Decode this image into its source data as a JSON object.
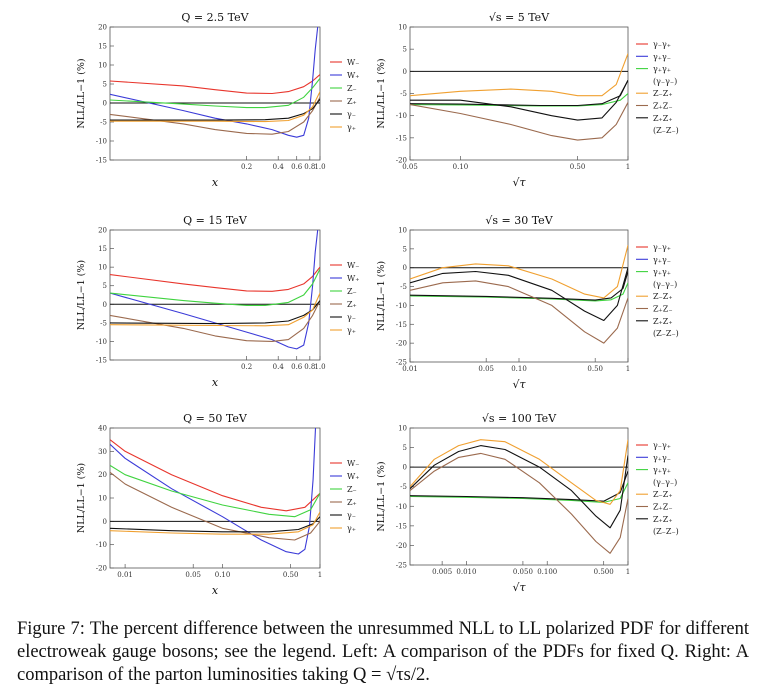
{
  "figure": {
    "caption_label": "Figure 7:",
    "caption_text": "The percent difference between the unresummed NLL to LL polarized PDF for different electroweak gauge bosons; see the legend. Left: A comparison of the PDFs for fixed Q. Right: A comparison of the parton luminosities taking Q = √τs/2."
  },
  "colors": {
    "red": "#e8352c",
    "blue": "#3b3bd8",
    "green": "#3fd33f",
    "brown": "#9b6a4e",
    "black": "#111111",
    "orange": "#f0a030"
  },
  "left_legend": [
    "W₋",
    "W₊",
    "Z₋",
    "Z₊",
    "γ₋",
    "γ₊"
  ],
  "left_legend_colors": [
    "#e8352c",
    "#3b3bd8",
    "#3fd33f",
    "#9b6a4e",
    "#111111",
    "#f0a030"
  ],
  "right_legend": [
    "γ₋γ₊",
    "γ₊γ₋",
    "γ₊γ₊",
    "(γ₋γ₋)",
    "Z₋Z₊",
    "Z₊Z₋",
    "Z₊Z₊",
    "(Z₋Z₋)"
  ],
  "right_legend_colors": [
    "#e8352c",
    "#3b3bd8",
    "#3fd33f",
    "#3fd33f",
    "#f0a030",
    "#9b6a4e",
    "#111111",
    "#111111"
  ],
  "chart_data": [
    {
      "type": "line",
      "title": "Q = 2.5 TeV",
      "xlabel": "x",
      "ylabel": "NLL/LL−1 (%)",
      "xscale": "log",
      "xlim": [
        0.01,
        1.0
      ],
      "ylim": [
        -15,
        20
      ],
      "yticks": [
        -15,
        -10,
        -5,
        0,
        5,
        10,
        15,
        20
      ],
      "xticks": [
        0.2,
        0.4,
        0.6,
        0.8,
        1.0
      ],
      "series": [
        {
          "name": "W₋",
          "color": "#e8352c",
          "x": [
            0.01,
            0.05,
            0.1,
            0.2,
            0.35,
            0.5,
            0.7,
            0.85,
            1.0
          ],
          "y": [
            5.8,
            4.5,
            3.5,
            2.6,
            2.5,
            3.0,
            4.3,
            5.8,
            7.5
          ]
        },
        {
          "name": "W₊",
          "color": "#3b3bd8",
          "x": [
            0.01,
            0.05,
            0.1,
            0.2,
            0.35,
            0.5,
            0.6,
            0.7,
            0.78,
            0.85,
            0.9,
            0.95
          ],
          "y": [
            2.3,
            -2.0,
            -4.0,
            -5.5,
            -7.0,
            -8.5,
            -9.0,
            -8.5,
            -4.0,
            6.0,
            14.0,
            20.0
          ]
        },
        {
          "name": "Z₋",
          "color": "#3fd33f",
          "x": [
            0.01,
            0.05,
            0.1,
            0.2,
            0.3,
            0.5,
            0.7,
            0.85,
            1.0
          ],
          "y": [
            0.8,
            -0.3,
            -0.8,
            -1.2,
            -1.2,
            -0.6,
            1.5,
            4.0,
            6.5
          ]
        },
        {
          "name": "Z₊",
          "color": "#9b6a4e",
          "x": [
            0.01,
            0.05,
            0.1,
            0.2,
            0.35,
            0.5,
            0.7,
            0.85,
            1.0
          ],
          "y": [
            -3.0,
            -5.5,
            -7.0,
            -8.0,
            -8.2,
            -7.5,
            -5.0,
            -2.0,
            1.5
          ]
        },
        {
          "name": "γ₋",
          "color": "#111111",
          "x": [
            0.01,
            0.1,
            0.3,
            0.5,
            0.7,
            0.85,
            1.0
          ],
          "y": [
            -4.5,
            -4.5,
            -4.4,
            -4.0,
            -2.8,
            -1.5,
            1.0
          ]
        },
        {
          "name": "γ₊",
          "color": "#f0a030",
          "x": [
            0.01,
            0.1,
            0.3,
            0.5,
            0.7,
            0.85,
            1.0
          ],
          "y": [
            -4.8,
            -4.8,
            -4.9,
            -4.6,
            -3.2,
            -1.0,
            3.0
          ]
        }
      ]
    },
    {
      "type": "line",
      "title": "Q = 15 TeV",
      "xlabel": "x",
      "ylabel": "NLL/LL−1 (%)",
      "xscale": "log",
      "xlim": [
        0.01,
        1.0
      ],
      "ylim": [
        -15,
        20
      ],
      "yticks": [
        -15,
        -10,
        -5,
        0,
        5,
        10,
        15,
        20
      ],
      "xticks": [
        0.2,
        0.4,
        0.6,
        0.8,
        1.0
      ],
      "series": [
        {
          "name": "W₋",
          "color": "#e8352c",
          "x": [
            0.01,
            0.05,
            0.1,
            0.2,
            0.35,
            0.5,
            0.7,
            0.85,
            1.0
          ],
          "y": [
            8.0,
            5.5,
            4.5,
            3.6,
            3.5,
            4.0,
            5.5,
            7.5,
            10.0
          ]
        },
        {
          "name": "W₊",
          "color": "#3b3bd8",
          "x": [
            0.01,
            0.05,
            0.1,
            0.2,
            0.35,
            0.5,
            0.6,
            0.7,
            0.78,
            0.85,
            0.9,
            0.95
          ],
          "y": [
            3.0,
            -2.5,
            -5.0,
            -7.5,
            -9.5,
            -11.5,
            -12.0,
            -11.0,
            -5.0,
            5.0,
            14.0,
            20.0
          ]
        },
        {
          "name": "Z₋",
          "color": "#3fd33f",
          "x": [
            0.01,
            0.05,
            0.1,
            0.2,
            0.3,
            0.5,
            0.7,
            0.85,
            1.0
          ],
          "y": [
            3.0,
            1.0,
            0.3,
            -0.3,
            -0.3,
            0.5,
            2.5,
            5.5,
            9.5
          ]
        },
        {
          "name": "Z₊",
          "color": "#9b6a4e",
          "x": [
            0.01,
            0.05,
            0.1,
            0.2,
            0.35,
            0.5,
            0.7,
            0.85,
            1.0
          ],
          "y": [
            -3.0,
            -6.5,
            -8.5,
            -9.8,
            -10.0,
            -9.5,
            -6.5,
            -3.0,
            1.0
          ]
        },
        {
          "name": "γ₋",
          "color": "#111111",
          "x": [
            0.01,
            0.1,
            0.3,
            0.5,
            0.7,
            0.85,
            1.0
          ],
          "y": [
            -5.0,
            -5.2,
            -5.0,
            -4.5,
            -3.0,
            -1.5,
            1.0
          ]
        },
        {
          "name": "γ₊",
          "color": "#f0a030",
          "x": [
            0.01,
            0.1,
            0.3,
            0.5,
            0.7,
            0.85,
            1.0
          ],
          "y": [
            -5.5,
            -5.7,
            -5.8,
            -5.5,
            -3.5,
            -1.5,
            3.0
          ]
        }
      ]
    },
    {
      "type": "line",
      "title": "Q = 50 TeV",
      "xlabel": "x",
      "ylabel": "NLL/LL−1 (%)",
      "xscale": "log",
      "xlim": [
        0.007,
        1.0
      ],
      "ylim": [
        -20,
        40
      ],
      "yticks": [
        -20,
        -10,
        0,
        10,
        20,
        30,
        40
      ],
      "xticks": [
        0.01,
        0.05,
        0.1,
        0.5,
        1
      ],
      "series": [
        {
          "name": "W₋",
          "color": "#e8352c",
          "x": [
            0.007,
            0.01,
            0.03,
            0.1,
            0.25,
            0.45,
            0.7,
            1.0
          ],
          "y": [
            35,
            30,
            20,
            11,
            6,
            4.5,
            6,
            12
          ]
        },
        {
          "name": "W₊",
          "color": "#3b3bd8",
          "x": [
            0.007,
            0.01,
            0.03,
            0.1,
            0.25,
            0.45,
            0.6,
            0.7,
            0.78,
            0.85,
            0.9
          ],
          "y": [
            33,
            27,
            14,
            2,
            -8,
            -13,
            -14,
            -12,
            -2,
            18,
            40
          ]
        },
        {
          "name": "Z₋",
          "color": "#3fd33f",
          "x": [
            0.007,
            0.01,
            0.03,
            0.1,
            0.3,
            0.55,
            0.8,
            1.0
          ],
          "y": [
            24,
            20,
            13,
            7,
            3,
            2,
            5,
            12
          ]
        },
        {
          "name": "Z₊",
          "color": "#9b6a4e",
          "x": [
            0.007,
            0.01,
            0.03,
            0.1,
            0.3,
            0.55,
            0.8,
            1.0
          ],
          "y": [
            21,
            16,
            6,
            -3,
            -7,
            -8,
            -5,
            0
          ]
        },
        {
          "name": "γ₋",
          "color": "#111111",
          "x": [
            0.007,
            0.03,
            0.1,
            0.3,
            0.6,
            0.85,
            1.0
          ],
          "y": [
            -3,
            -4,
            -4.5,
            -4.5,
            -3.5,
            -1,
            2
          ]
        },
        {
          "name": "γ₊",
          "color": "#f0a030",
          "x": [
            0.007,
            0.03,
            0.1,
            0.3,
            0.6,
            0.85,
            1.0
          ],
          "y": [
            -4,
            -5,
            -5.5,
            -5.5,
            -4.5,
            -1.5,
            4
          ]
        }
      ]
    },
    {
      "type": "line",
      "title": "√s = 5 TeV",
      "xlabel": "√τ",
      "ylabel": "NLL/LL−1 (%)",
      "xscale": "log",
      "xlim": [
        0.05,
        1.0
      ],
      "ylim": [
        -20,
        10
      ],
      "yticks": [
        -20,
        -15,
        -10,
        -5,
        0,
        5,
        10
      ],
      "xticks": [
        0.05,
        0.1,
        0.5,
        1
      ],
      "series": [
        {
          "name": "γ₋γ₊ / γ₊γ₋ / γ₊γ₊",
          "color": "#3fd33f",
          "x": [
            0.05,
            0.1,
            0.3,
            0.5,
            0.7,
            0.9,
            1.0
          ],
          "y": [
            -7.5,
            -7.6,
            -7.8,
            -7.8,
            -7.5,
            -6.5,
            -5.0
          ]
        },
        {
          "name": "(γ₋γ₋)",
          "color": "#111111",
          "x": [
            0.05,
            0.1,
            0.3,
            0.5,
            0.7,
            0.9,
            1.0
          ],
          "y": [
            -7.3,
            -7.4,
            -7.7,
            -7.7,
            -7.3,
            -5.5,
            -2.0
          ]
        },
        {
          "name": "Z₋Z₊",
          "color": "#f0a030",
          "x": [
            0.05,
            0.1,
            0.2,
            0.35,
            0.5,
            0.7,
            0.85,
            1.0
          ],
          "y": [
            -5.5,
            -4.5,
            -4.0,
            -4.5,
            -5.5,
            -5.5,
            -3.0,
            4.0
          ]
        },
        {
          "name": "Z₊Z₋",
          "color": "#9b6a4e",
          "x": [
            0.05,
            0.1,
            0.2,
            0.35,
            0.5,
            0.7,
            0.85,
            1.0
          ],
          "y": [
            -7.5,
            -9.5,
            -12.0,
            -14.5,
            -15.5,
            -15.0,
            -12.0,
            -7.0
          ]
        },
        {
          "name": "Z₊Z₊",
          "color": "#111111",
          "x": [
            0.05,
            0.1,
            0.2,
            0.35,
            0.5,
            0.7,
            0.85,
            1.0
          ],
          "y": [
            -6.5,
            -6.5,
            -8.0,
            -10.0,
            -11.0,
            -10.5,
            -7.0,
            -2.0
          ]
        }
      ]
    },
    {
      "type": "line",
      "title": "√s = 30 TeV",
      "xlabel": "√τ",
      "ylabel": "NLL/LL−1 (%)",
      "xscale": "log",
      "xlim": [
        0.01,
        1.0
      ],
      "ylim": [
        -25,
        10
      ],
      "yticks": [
        -25,
        -20,
        -15,
        -10,
        -5,
        0,
        5,
        10
      ],
      "xticks": [
        0.01,
        0.05,
        0.1,
        0.5,
        1
      ],
      "series": [
        {
          "name": "γ₋γ₊ / γ₊γ₋ / γ₊γ₊",
          "color": "#3fd33f",
          "x": [
            0.01,
            0.05,
            0.2,
            0.5,
            0.7,
            0.9,
            1.0
          ],
          "y": [
            -7.5,
            -7.8,
            -8.3,
            -8.8,
            -8.5,
            -7.0,
            -4.0
          ]
        },
        {
          "name": "(γ₋γ₋)",
          "color": "#111111",
          "x": [
            0.01,
            0.05,
            0.2,
            0.5,
            0.7,
            0.9,
            1.0
          ],
          "y": [
            -7.3,
            -7.6,
            -8.1,
            -8.6,
            -8.0,
            -5.5,
            -1.0
          ]
        },
        {
          "name": "Z₋Z₊",
          "color": "#f0a030",
          "x": [
            0.01,
            0.02,
            0.04,
            0.08,
            0.2,
            0.4,
            0.6,
            0.8,
            1.0
          ],
          "y": [
            -3.0,
            0.0,
            1.0,
            0.5,
            -3.0,
            -7.0,
            -8.0,
            -5.0,
            6.0
          ]
        },
        {
          "name": "Z₊Z₋",
          "color": "#9b6a4e",
          "x": [
            0.01,
            0.02,
            0.04,
            0.08,
            0.2,
            0.4,
            0.6,
            0.8,
            1.0
          ],
          "y": [
            -6.0,
            -4.0,
            -3.5,
            -5.0,
            -10.0,
            -17.0,
            -20.0,
            -16.0,
            -8.0
          ]
        },
        {
          "name": "Z₊Z₊",
          "color": "#111111",
          "x": [
            0.01,
            0.02,
            0.04,
            0.08,
            0.2,
            0.4,
            0.6,
            0.8,
            1.0
          ],
          "y": [
            -4.0,
            -1.5,
            -1.0,
            -2.0,
            -6.0,
            -11.5,
            -14.0,
            -10.0,
            0.0
          ]
        }
      ]
    },
    {
      "type": "line",
      "title": "√s = 100 TeV",
      "xlabel": "√τ",
      "ylabel": "NLL/LL−1 (%)",
      "xscale": "log",
      "xlim": [
        0.002,
        1.0
      ],
      "ylim": [
        -25,
        10
      ],
      "yticks": [
        -25,
        -20,
        -15,
        -10,
        -5,
        0,
        5,
        10
      ],
      "xticks": [
        0.005,
        0.01,
        0.05,
        0.1,
        0.5,
        1
      ],
      "series": [
        {
          "name": "γ₋γ₊ / γ₊γ₋ / γ₊γ₊",
          "color": "#3fd33f",
          "x": [
            0.002,
            0.01,
            0.05,
            0.2,
            0.5,
            0.8,
            1.0
          ],
          "y": [
            -7.5,
            -7.7,
            -8.0,
            -8.5,
            -9.0,
            -8.0,
            -4.0
          ]
        },
        {
          "name": "(γ₋γ₋)",
          "color": "#111111",
          "x": [
            0.002,
            0.01,
            0.05,
            0.2,
            0.5,
            0.8,
            1.0
          ],
          "y": [
            -7.3,
            -7.5,
            -7.8,
            -8.3,
            -8.7,
            -6.5,
            -1.0
          ]
        },
        {
          "name": "Z₋Z₊",
          "color": "#f0a030",
          "x": [
            0.002,
            0.004,
            0.008,
            0.015,
            0.03,
            0.08,
            0.2,
            0.4,
            0.6,
            0.8,
            1.0
          ],
          "y": [
            -5.0,
            2.0,
            5.5,
            7.0,
            6.5,
            2.0,
            -4.0,
            -8.5,
            -9.5,
            -6.0,
            7.0
          ]
        },
        {
          "name": "Z₊Z₋",
          "color": "#9b6a4e",
          "x": [
            0.002,
            0.004,
            0.008,
            0.015,
            0.03,
            0.08,
            0.2,
            0.4,
            0.6,
            0.8,
            1.0
          ],
          "y": [
            -6.0,
            -1.0,
            2.5,
            3.5,
            2.0,
            -4.0,
            -12.0,
            -19.0,
            -22.0,
            -18.0,
            -8.0
          ]
        },
        {
          "name": "Z₊Z₊",
          "color": "#111111",
          "x": [
            0.002,
            0.004,
            0.008,
            0.015,
            0.03,
            0.08,
            0.2,
            0.4,
            0.6,
            0.8,
            1.0
          ],
          "y": [
            -5.5,
            0.5,
            4.0,
            5.5,
            4.5,
            0.0,
            -6.0,
            -12.5,
            -15.5,
            -11.0,
            3.0
          ]
        }
      ]
    }
  ]
}
